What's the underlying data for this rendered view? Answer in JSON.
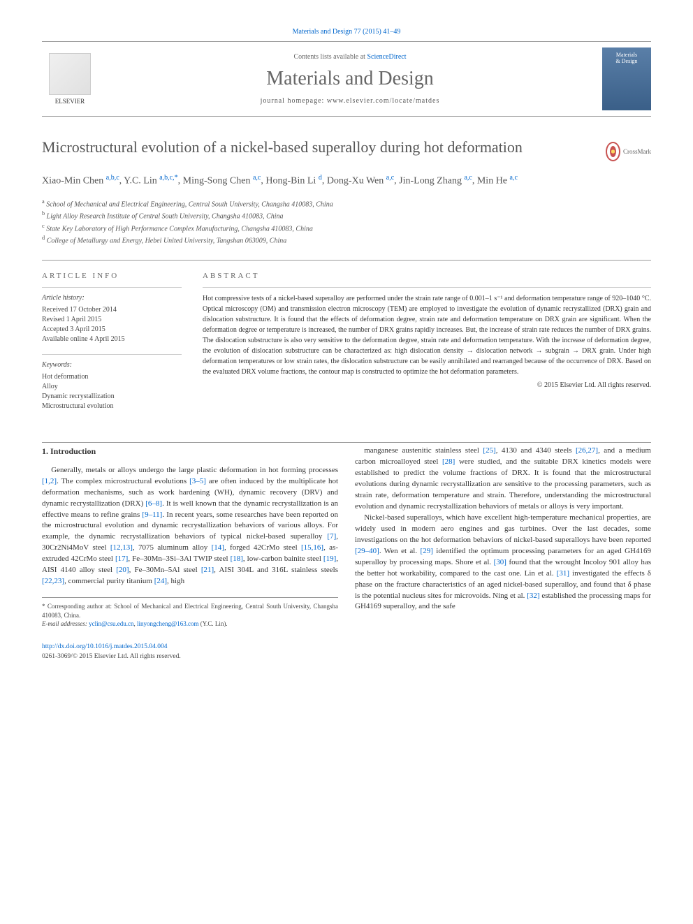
{
  "citation": "Materials and Design 77 (2015) 41–49",
  "header": {
    "contents_prefix": "Contents lists available at ",
    "contents_link": "ScienceDirect",
    "journal_name": "Materials and Design",
    "homepage_label": "journal homepage: ",
    "homepage_url": "www.elsevier.com/locate/matdes",
    "publisher": "ELSEVIER",
    "cover_line1": "Materials",
    "cover_line2": "& Design"
  },
  "title": "Microstructural evolution of a nickel-based superalloy during hot deformation",
  "crossmark": "CrossMark",
  "authors_html": "Xiao-Min Chen <sup>a,b,c</sup>, Y.C. Lin <sup>a,b,c,*</sup>, Ming-Song Chen <sup>a,c</sup>, Hong-Bin Li <sup>d</sup>, Dong-Xu Wen <sup>a,c</sup>, Jin-Long Zhang <sup>a,c</sup>, Min He <sup>a,c</sup>",
  "affiliations": {
    "a": "School of Mechanical and Electrical Engineering, Central South University, Changsha 410083, China",
    "b": "Light Alloy Research Institute of Central South University, Changsha 410083, China",
    "c": "State Key Laboratory of High Performance Complex Manufacturing, Changsha 410083, China",
    "d": "College of Metallurgy and Energy, Hebei United University, Tangshan 063009, China"
  },
  "article_info": {
    "header": "article info",
    "history_label": "Article history:",
    "received": "Received 17 October 2014",
    "revised": "Revised 1 April 2015",
    "accepted": "Accepted 3 April 2015",
    "online": "Available online 4 April 2015",
    "keywords_label": "Keywords:",
    "keywords": [
      "Hot deformation",
      "Alloy",
      "Dynamic recrystallization",
      "Microstructural evolution"
    ]
  },
  "abstract": {
    "header": "abstract",
    "text": "Hot compressive tests of a nickel-based superalloy are performed under the strain rate range of 0.001–1 s⁻¹ and deformation temperature range of 920–1040 °C. Optical microscopy (OM) and transmission electron microscopy (TEM) are employed to investigate the evolution of dynamic recrystallized (DRX) grain and dislocation substructure. It is found that the effects of deformation degree, strain rate and deformation temperature on DRX grain are significant. When the deformation degree or temperature is increased, the number of DRX grains rapidly increases. But, the increase of strain rate reduces the number of DRX grains. The dislocation substructure is also very sensitive to the deformation degree, strain rate and deformation temperature. With the increase of deformation degree, the evolution of dislocation substructure can be characterized as: high dislocation density → dislocation network → subgrain → DRX grain. Under high deformation temperatures or low strain rates, the dislocation substructure can be easily annihilated and rearranged because of the occurrence of DRX. Based on the evaluated DRX volume fractions, the contour map is constructed to optimize the hot deformation parameters.",
    "copyright": "© 2015 Elsevier Ltd. All rights reserved."
  },
  "intro_header": "1. Introduction",
  "col1_p1": "Generally, metals or alloys undergo the large plastic deformation in hot forming processes [1,2]. The complex microstructural evolutions [3–5] are often induced by the multiplicate hot deformation mechanisms, such as work hardening (WH), dynamic recovery (DRV) and dynamic recrystallization (DRX) [6–8]. It is well known that the dynamic recrystallization is an effective means to refine grains [9–11]. In recent years, some researches have been reported on the microstructural evolution and dynamic recrystallization behaviors of various alloys. For example, the dynamic recrystallization behaviors of typical nickel-based superalloy [7], 30Cr2Ni4MoV steel [12,13], 7075 aluminum alloy [14], forged 42CrMo steel [15,16], as-extruded 42CrMo steel [17], Fe–30Mn–3Si–3Al TWIP steel [18], low-carbon bainite steel [19], AISI 4140 alloy steel [20], Fe–30Mn–5Al steel [21], AISI 304L and 316L stainless steels [22,23], commercial purity titanium [24], high",
  "col2_p1": "manganese austenitic stainless steel [25], 4130 and 4340 steels [26,27], and a medium carbon microalloyed steel [28] were studied, and the suitable DRX kinetics models were established to predict the volume fractions of DRX. It is found that the microstructural evolutions during dynamic recrystallization are sensitive to the processing parameters, such as strain rate, deformation temperature and strain. Therefore, understanding the microstructural evolution and dynamic recrystallization behaviors of metals or alloys is very important.",
  "col2_p2": "Nickel-based superalloys, which have excellent high-temperature mechanical properties, are widely used in modern aero engines and gas turbines. Over the last decades, some investigations on the hot deformation behaviors of nickel-based superalloys have been reported [29–40]. Wen et al. [29] identified the optimum processing parameters for an aged GH4169 superalloy by processing maps. Shore et al. [30] found that the wrought Incoloy 901 alloy has the better hot workability, compared to the cast one. Lin et al. [31] investigated the effects δ phase on the fracture characteristics of an aged nickel-based superalloy, and found that δ phase is the potential nucleus sites for microvoids. Ning et al. [32] established the processing maps for GH4169 superalloy, and the safe",
  "footnote": {
    "corr": "* Corresponding author at: School of Mechanical and Electrical Engineering, Central South University, Changsha 410083, China.",
    "email_label": "E-mail addresses: ",
    "email1": "yclin@csu.edu.cn",
    "email2": "linyongcheng@163.com",
    "email_name": " (Y.C. Lin)."
  },
  "doi": {
    "url": "http://dx.doi.org/10.1016/j.matdes.2015.04.004",
    "issn": "0261-3069/© 2015 Elsevier Ltd. All rights reserved."
  },
  "ref_colors": {
    "link": "#0066cc"
  }
}
